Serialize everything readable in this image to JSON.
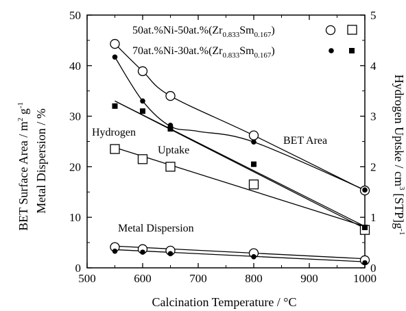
{
  "chart_data": {
    "type": "scatter",
    "xlabel": "Calcination Temperature / °C",
    "ylabel_left_line1": "BET Surface Area / m",
    "ylabel_left_sup1": "2",
    "ylabel_left_mid": " g",
    "ylabel_left_sup2": "-1",
    "ylabel_left_line2": "Metal Dispersion / %",
    "ylabel_right_part1": "Hydrogen Uptske / cm",
    "ylabel_right_sup1": "3",
    "ylabel_right_part2": " [STP]g",
    "ylabel_right_sup2": "-1",
    "xlim": [
      500,
      1000
    ],
    "ylim_left": [
      0,
      50
    ],
    "ylim_right": [
      0,
      5
    ],
    "x_ticks": [
      "500",
      "600",
      "700",
      "800",
      "900",
      "1000"
    ],
    "y_left_ticks": [
      "0",
      "10",
      "20",
      "30",
      "40",
      "50"
    ],
    "y_right_ticks": [
      "0",
      "1",
      "2",
      "3",
      "4",
      "5"
    ],
    "legend": [
      {
        "prefix": "50at.%Ni-50at.%(Zr",
        "sub1": "0.833",
        "mid": "Sm",
        "sub2": "0.167",
        "suffix": ")"
      },
      {
        "prefix": "70at.%Ni-30at.%(Zr",
        "sub1": "0.833",
        "mid": "Sm",
        "sub2": "0.167",
        "suffix": ")"
      }
    ],
    "annotations": {
      "hydrogen": "Hydrogen",
      "uptake": "Uptake",
      "bet_area": "BET Area",
      "metal_dispersion": "Metal Dispersion"
    },
    "series": [
      {
        "group": "BET Area",
        "alloy": 1,
        "axis": "left",
        "marker": "open-circle",
        "x": [
          550,
          600,
          650,
          800,
          1000
        ],
        "y": [
          44.3,
          38.9,
          34.0,
          26.2,
          15.3
        ]
      },
      {
        "group": "BET Area",
        "alloy": 2,
        "axis": "left",
        "marker": "filled-circle",
        "x": [
          550,
          600,
          650,
          800,
          1000
        ],
        "y": [
          41.7,
          33.0,
          28.2,
          24.9,
          15.4
        ]
      },
      {
        "group": "Hydrogen Uptake",
        "alloy": 1,
        "axis": "right",
        "marker": "open-square",
        "x": [
          550,
          600,
          650,
          800,
          1000
        ],
        "y": [
          2.35,
          2.15,
          2.0,
          1.65,
          0.75
        ]
      },
      {
        "group": "Hydrogen Uptake",
        "alloy": 2,
        "axis": "right",
        "marker": "filled-square",
        "x": [
          550,
          600,
          650,
          800,
          1000
        ],
        "y": [
          3.2,
          3.1,
          2.75,
          2.05,
          0.8
        ]
      },
      {
        "group": "Metal Dispersion",
        "alloy": 1,
        "axis": "left",
        "marker": "open-circle",
        "x": [
          550,
          600,
          650,
          800,
          1000
        ],
        "y": [
          4.1,
          3.7,
          3.4,
          2.9,
          1.5
        ]
      },
      {
        "group": "Metal Dispersion",
        "alloy": 2,
        "axis": "left",
        "marker": "filled-circle",
        "x": [
          550,
          600,
          650,
          800,
          1000
        ],
        "y": [
          3.3,
          3.1,
          2.8,
          2.2,
          1.0
        ]
      }
    ],
    "fit_lines": [
      {
        "axis": "left",
        "x": [
          550,
          1000
        ],
        "y": [
          33.0,
          8.2
        ]
      },
      {
        "axis": "right",
        "x": [
          550,
          1000
        ],
        "y": [
          2.38,
          0.82
        ]
      },
      {
        "axis": "right",
        "x": [
          550,
          1000
        ],
        "y": [
          3.3,
          0.78
        ]
      },
      {
        "axis": "left",
        "x": [
          550,
          1000
        ],
        "y": [
          4.3,
          1.8
        ]
      },
      {
        "axis": "left",
        "x": [
          550,
          1000
        ],
        "y": [
          3.6,
          1.2
        ]
      }
    ],
    "curves": [
      {
        "axis": "left",
        "x": [
          550,
          600,
          650,
          800,
          1000
        ],
        "y": [
          44.3,
          38.9,
          34.0,
          26.2,
          15.3
        ]
      },
      {
        "axis": "left",
        "x": [
          550,
          600,
          650,
          700,
          800,
          1000
        ],
        "y": [
          41.7,
          33.0,
          28.0,
          27.0,
          24.9,
          15.4
        ]
      }
    ],
    "grid": false
  }
}
